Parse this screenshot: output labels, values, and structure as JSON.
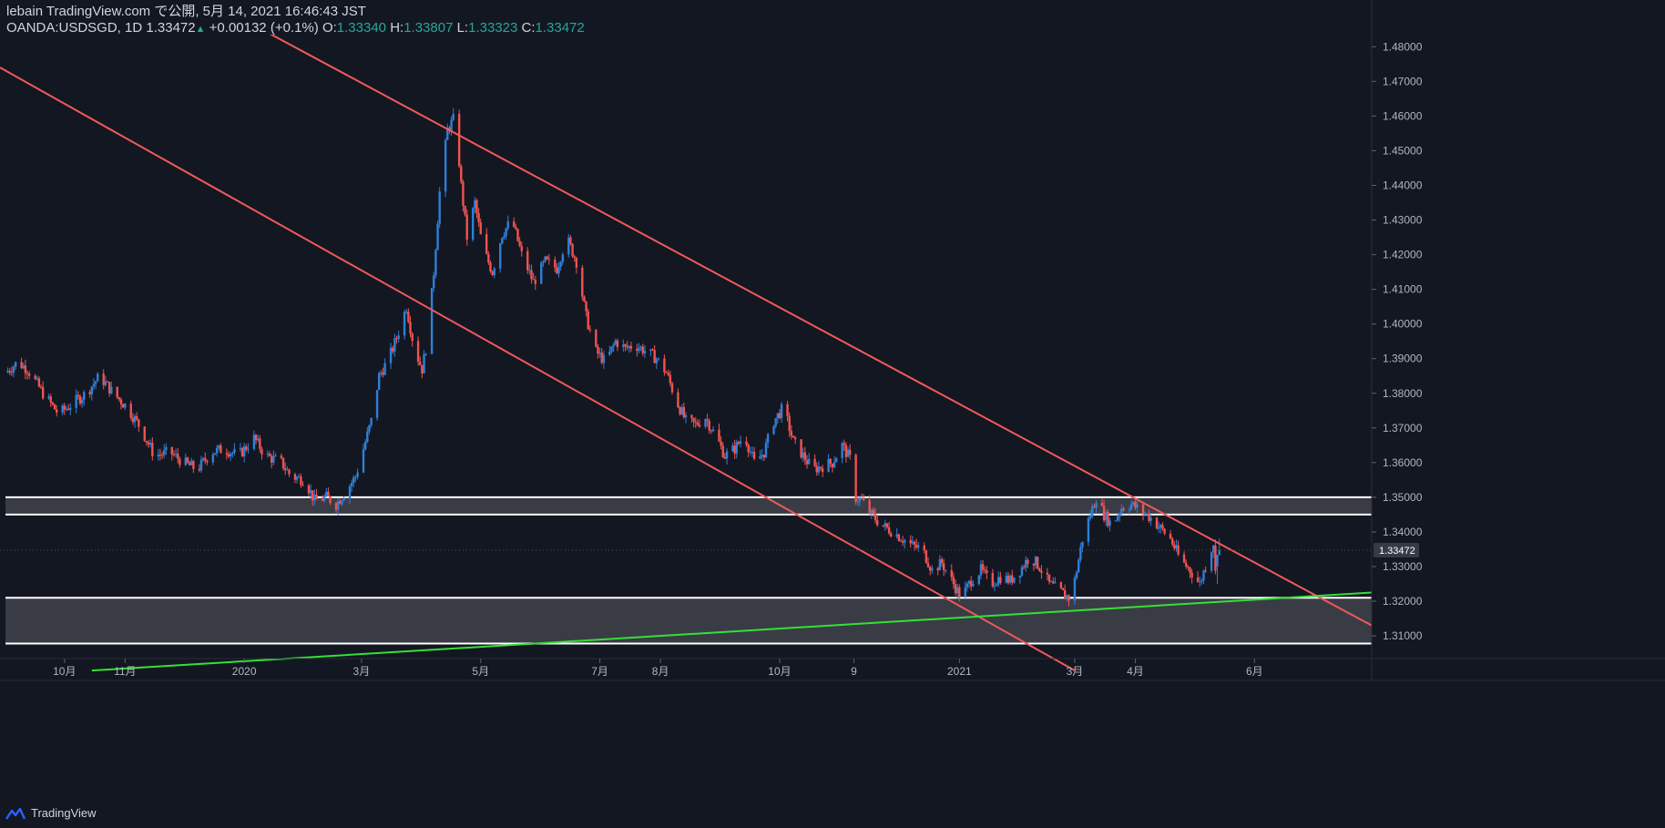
{
  "header": {
    "published_line": "lebain TradingView.com で公開, 5月 14, 2021 16:46:43 JST",
    "symbol": "OANDA:USDSGD, 1D",
    "last_price": "1.33472",
    "change": "+0.00132 (+0.1%)",
    "open_label": "O:",
    "open_value": "1.33340",
    "high_label": "H:",
    "high_value": "1.33807",
    "low_label": "L:",
    "low_value": "1.33323",
    "close_label": "C:",
    "close_value": "1.33472"
  },
  "footer": {
    "brand": "TradingView"
  },
  "colors": {
    "background": "#131722",
    "up": "#2f7fd6",
    "down": "#ef5350",
    "channel": "#f05a5a",
    "trendline": "#35e035",
    "zone_fill": "#3a3c45",
    "zone_line": "#ffffff",
    "price_tag": "#363a45",
    "axis_text": "#b2b5be"
  },
  "chart_data": {
    "type": "candlestick",
    "symbol": "OANDA:USDSGD",
    "interval": "1D",
    "y_axis": {
      "ylim": [
        1.3045,
        1.4835
      ],
      "ticks": [
        1.31,
        1.32,
        1.33,
        1.34,
        1.35,
        1.36,
        1.37,
        1.38,
        1.39,
        1.4,
        1.41,
        1.42,
        1.43,
        1.44,
        1.45,
        1.46,
        1.47,
        1.48
      ],
      "tick_labels": [
        "1.31000",
        "1.32000",
        "1.33000",
        "1.34000",
        "1.35000",
        "1.36000",
        "1.37000",
        "1.38000",
        "1.39000",
        "1.40000",
        "1.41000",
        "1.42000",
        "1.43000",
        "1.44000",
        "1.45000",
        "1.46000",
        "1.47000",
        "1.48000"
      ],
      "last_price_label": "1.33472",
      "last_price": 1.33472
    },
    "x_axis": {
      "date_range": [
        "2019-08-29",
        "2021-07-31"
      ],
      "ticks": [
        {
          "label": "10月",
          "date": "2019-10-01"
        },
        {
          "label": "11月",
          "date": "2019-11-01"
        },
        {
          "label": "2020",
          "date": "2020-01-01"
        },
        {
          "label": "3月",
          "date": "2020-03-01"
        },
        {
          "label": "5月",
          "date": "2020-05-01"
        },
        {
          "label": "7月",
          "date": "2020-07-01"
        },
        {
          "label": "8月",
          "date": "2020-08-01"
        },
        {
          "label": "10月",
          "date": "2020-10-01"
        },
        {
          "label": "9",
          "date": "2020-11-08"
        },
        {
          "label": "2021",
          "date": "2021-01-01"
        },
        {
          "label": "3月",
          "date": "2021-03-01"
        },
        {
          "label": "4月",
          "date": "2021-04-01"
        },
        {
          "label": "6月",
          "date": "2021-06-01"
        }
      ]
    },
    "series_path": [
      [
        "2019-09-01",
        1.386
      ],
      [
        "2019-09-07",
        1.389
      ],
      [
        "2019-09-12",
        1.387
      ],
      [
        "2019-09-20",
        1.38
      ],
      [
        "2019-09-28",
        1.374
      ],
      [
        "2019-10-05",
        1.377
      ],
      [
        "2019-10-12",
        1.38
      ],
      [
        "2019-10-19",
        1.385
      ],
      [
        "2019-10-26",
        1.38
      ],
      [
        "2019-11-02",
        1.376
      ],
      [
        "2019-11-09",
        1.37
      ],
      [
        "2019-11-16",
        1.362
      ],
      [
        "2019-11-24",
        1.363
      ],
      [
        "2019-12-01",
        1.36
      ],
      [
        "2019-12-08",
        1.358
      ],
      [
        "2019-12-15",
        1.363
      ],
      [
        "2019-12-22",
        1.364
      ],
      [
        "2019-12-29",
        1.362
      ],
      [
        "2020-01-06",
        1.367
      ],
      [
        "2020-01-12",
        1.362
      ],
      [
        "2020-01-20",
        1.36
      ],
      [
        "2020-01-25",
        1.356
      ],
      [
        "2020-02-01",
        1.355
      ],
      [
        "2020-02-06",
        1.349
      ],
      [
        "2020-02-12",
        1.35
      ],
      [
        "2020-02-17",
        1.348
      ],
      [
        "2020-02-21",
        1.351
      ],
      [
        "2020-02-27",
        1.356
      ],
      [
        "2020-03-02",
        1.364
      ],
      [
        "2020-03-06",
        1.372
      ],
      [
        "2020-03-10",
        1.385
      ],
      [
        "2020-03-15",
        1.39
      ],
      [
        "2020-03-19",
        1.396
      ],
      [
        "2020-03-24",
        1.405
      ],
      [
        "2020-03-28",
        1.393
      ],
      [
        "2020-04-01",
        1.387
      ],
      [
        "2020-04-04",
        1.396
      ],
      [
        "2020-04-07",
        1.415
      ],
      [
        "2020-04-10",
        1.438
      ],
      [
        "2020-04-14",
        1.456
      ],
      [
        "2020-04-18",
        1.46
      ],
      [
        "2020-04-21",
        1.44
      ],
      [
        "2020-04-24",
        1.425
      ],
      [
        "2020-04-28",
        1.435
      ],
      [
        "2020-05-02",
        1.422
      ],
      [
        "2020-05-07",
        1.415
      ],
      [
        "2020-05-12",
        1.426
      ],
      [
        "2020-05-17",
        1.43
      ],
      [
        "2020-05-22",
        1.42
      ],
      [
        "2020-05-28",
        1.412
      ],
      [
        "2020-06-03",
        1.418
      ],
      [
        "2020-06-09",
        1.416
      ],
      [
        "2020-06-14",
        1.425
      ],
      [
        "2020-06-19",
        1.418
      ],
      [
        "2020-06-24",
        1.402
      ],
      [
        "2020-06-29",
        1.392
      ],
      [
        "2020-07-04",
        1.389
      ],
      [
        "2020-07-09",
        1.395
      ],
      [
        "2020-07-14",
        1.393
      ],
      [
        "2020-07-19",
        1.394
      ],
      [
        "2020-07-25",
        1.392
      ],
      [
        "2020-07-30",
        1.39
      ],
      [
        "2020-08-04",
        1.386
      ],
      [
        "2020-08-09",
        1.378
      ],
      [
        "2020-08-14",
        1.372
      ],
      [
        "2020-08-19",
        1.371
      ],
      [
        "2020-08-24",
        1.373
      ],
      [
        "2020-08-29",
        1.368
      ],
      [
        "2020-09-03",
        1.362
      ],
      [
        "2020-09-08",
        1.364
      ],
      [
        "2020-09-13",
        1.368
      ],
      [
        "2020-09-18",
        1.36
      ],
      [
        "2020-09-23",
        1.363
      ],
      [
        "2020-09-28",
        1.372
      ],
      [
        "2020-10-03",
        1.376
      ],
      [
        "2020-10-08",
        1.366
      ],
      [
        "2020-10-13",
        1.362
      ],
      [
        "2020-10-18",
        1.358
      ],
      [
        "2020-10-23",
        1.359
      ],
      [
        "2020-10-28",
        1.36
      ],
      [
        "2020-11-02",
        1.365
      ],
      [
        "2020-11-06",
        1.361
      ],
      [
        "2020-11-09",
        1.35
      ],
      [
        "2020-11-12",
        1.349
      ],
      [
        "2020-11-17",
        1.345
      ],
      [
        "2020-11-22",
        1.342
      ],
      [
        "2020-11-28",
        1.34
      ],
      [
        "2020-12-03",
        1.338
      ],
      [
        "2020-12-08",
        1.336
      ],
      [
        "2020-12-13",
        1.335
      ],
      [
        "2020-12-18",
        1.329
      ],
      [
        "2020-12-23",
        1.331
      ],
      [
        "2020-12-28",
        1.326
      ],
      [
        "2021-01-02",
        1.321
      ],
      [
        "2021-01-07",
        1.326
      ],
      [
        "2021-01-12",
        1.329
      ],
      [
        "2021-01-17",
        1.325
      ],
      [
        "2021-01-22",
        1.327
      ],
      [
        "2021-01-27",
        1.326
      ],
      [
        "2021-02-01",
        1.329
      ],
      [
        "2021-02-06",
        1.333
      ],
      [
        "2021-02-11",
        1.33
      ],
      [
        "2021-02-16",
        1.325
      ],
      [
        "2021-02-21",
        1.323
      ],
      [
        "2021-02-26",
        1.321
      ],
      [
        "2021-03-01",
        1.326
      ],
      [
        "2021-03-05",
        1.338
      ],
      [
        "2021-03-09",
        1.345
      ],
      [
        "2021-03-12",
        1.35
      ],
      [
        "2021-03-16",
        1.345
      ],
      [
        "2021-03-20",
        1.342
      ],
      [
        "2021-03-25",
        1.347
      ],
      [
        "2021-03-30",
        1.348
      ],
      [
        "2021-04-04",
        1.346
      ],
      [
        "2021-04-09",
        1.344
      ],
      [
        "2021-04-14",
        1.341
      ],
      [
        "2021-04-19",
        1.338
      ],
      [
        "2021-04-24",
        1.332
      ],
      [
        "2021-04-29",
        1.329
      ],
      [
        "2021-05-04",
        1.325
      ],
      [
        "2021-05-08",
        1.332
      ],
      [
        "2021-05-11",
        1.337
      ],
      [
        "2021-05-12",
        1.328
      ],
      [
        "2021-05-14",
        1.334
      ]
    ],
    "last_candles": [
      {
        "date": "2021-05-13",
        "open": 1.33,
        "high": 1.332,
        "low": 1.325,
        "close": 1.3334
      },
      {
        "date": "2021-05-14",
        "open": 1.3334,
        "high": 1.33807,
        "low": 1.33323,
        "close": 1.33472
      }
    ],
    "annotations": {
      "zones": [
        {
          "from": 1.345,
          "to": 1.35
        },
        {
          "from": 1.3078,
          "to": 1.321
        }
      ],
      "descending_channel": {
        "upper": [
          [
            "2020-01-10",
            1.485
          ],
          [
            "2021-07-31",
            1.313
          ]
        ],
        "lower": [
          [
            "2019-08-29",
            1.474
          ],
          [
            "2021-03-01",
            1.3
          ]
        ]
      },
      "rising_trendline": [
        [
          "2019-10-15",
          1.3
        ],
        [
          "2021-07-31",
          1.3225
        ]
      ]
    }
  }
}
